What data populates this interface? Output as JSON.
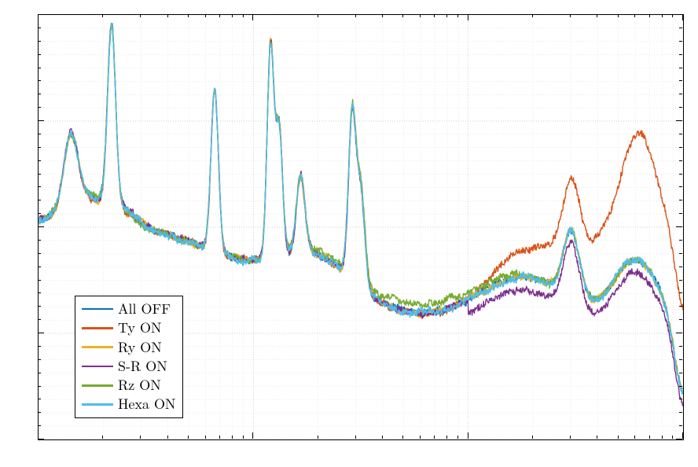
{
  "chart": {
    "type": "line",
    "background_color": "#ffffff",
    "border_color": "#000000",
    "grid_minor_color": "#d9d9d9",
    "grid_major_color": "#bfbfbf",
    "axes": {
      "x": {
        "scale": "log",
        "range_log10": [
          0,
          3
        ],
        "major_ticks_log10": [
          0,
          1,
          2,
          3
        ],
        "minor_per_decade": [
          2,
          3,
          4,
          5,
          6,
          7,
          8,
          9
        ]
      },
      "y": {
        "major_tick_count": 4,
        "minor_tick_count": 8
      }
    },
    "legend": {
      "fontsize": 18,
      "border_color": "#000000",
      "background_color": "#ffffff",
      "entries": [
        {
          "label": "All OFF",
          "color": "#0072bd"
        },
        {
          "label": "Ty ON",
          "color": "#d95319"
        },
        {
          "label": "Ry ON",
          "color": "#edb120"
        },
        {
          "label": "S-R ON",
          "color": "#7e2f8e"
        },
        {
          "label": "Rz ON",
          "color": "#77ac30"
        },
        {
          "label": "Hexa ON",
          "color": "#4dbeee"
        }
      ]
    },
    "series": [
      {
        "name": "All OFF",
        "color": "#0072bd"
      },
      {
        "name": "Ty ON",
        "color": "#d95319"
      },
      {
        "name": "Ry ON",
        "color": "#edb120"
      },
      {
        "name": "S-R ON",
        "color": "#7e2f8e"
      },
      {
        "name": "Rz ON",
        "color": "#77ac30"
      },
      {
        "name": "Hexa ON",
        "color": "#4dbeee"
      }
    ]
  }
}
